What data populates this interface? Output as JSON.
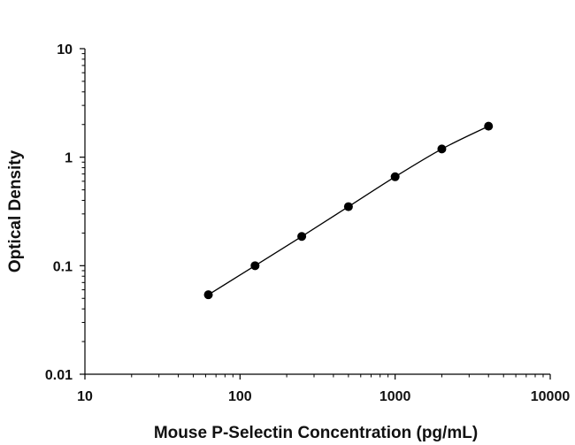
{
  "chart_data": {
    "type": "scatter",
    "title": "",
    "xlabel": "Mouse P-Selectin Concentration (pg/mL)",
    "ylabel": "Optical Density",
    "x_scale": "log",
    "y_scale": "log",
    "xlim": [
      10,
      10000
    ],
    "ylim": [
      0.01,
      10
    ],
    "x_tick_labels": [
      "10",
      "100",
      "1000",
      "10000"
    ],
    "y_tick_labels": [
      "0.01",
      "0.1",
      "1",
      "10"
    ],
    "grid": false,
    "legend": "none",
    "colors": {
      "points": "#000000",
      "curve": "#000000",
      "axes": "#000000"
    },
    "series": [
      {
        "x": [
          62.5,
          125,
          250,
          500,
          1000,
          2000,
          4000
        ],
        "y": [
          0.054,
          0.1,
          0.186,
          0.35,
          0.66,
          1.19,
          1.93
        ],
        "fit_line": true
      }
    ]
  }
}
